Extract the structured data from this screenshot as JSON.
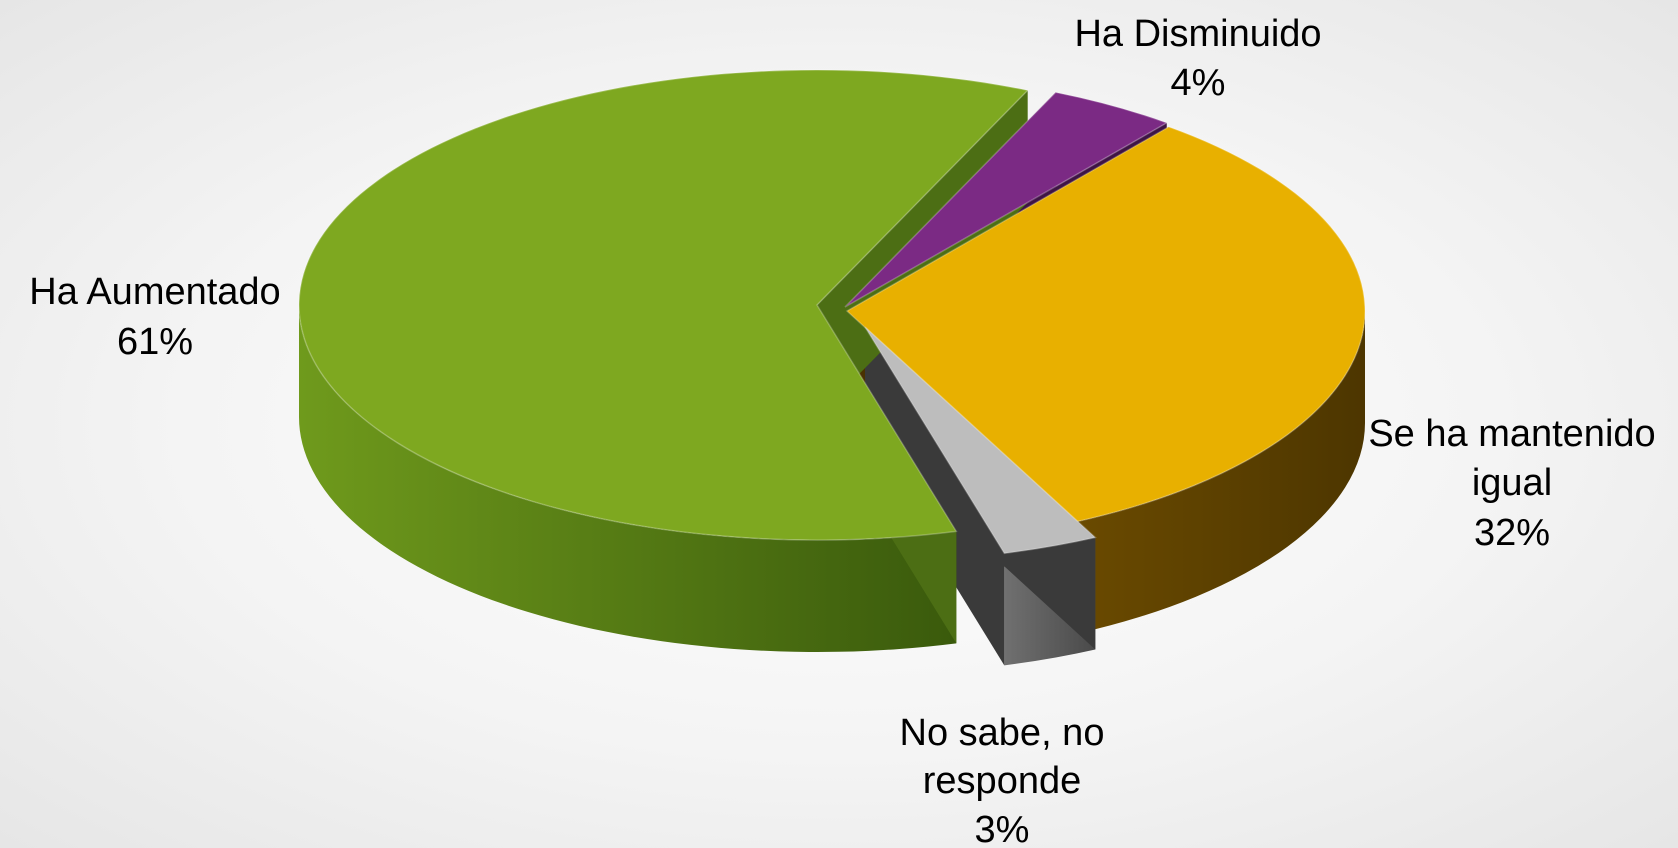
{
  "chart_data": {
    "type": "pie",
    "title": "",
    "slices": [
      {
        "label_lines": [
          "Ha Disminuido"
        ],
        "percent_label": "4%",
        "value": 4,
        "color": "#7b2a84"
      },
      {
        "label_lines": [
          "Se ha mantenido",
          "igual"
        ],
        "percent_label": "32%",
        "value": 32,
        "color": "#e8b000"
      },
      {
        "label_lines": [
          "No sabe, no",
          "responde"
        ],
        "percent_label": "3%",
        "value": 3,
        "color": "#bdbdbd"
      },
      {
        "label_lines": [
          "Ha Aumentado"
        ],
        "percent_label": "61%",
        "value": 61,
        "color": "#7ea820"
      }
    ],
    "style": "3d-exploded",
    "legend": "none"
  }
}
